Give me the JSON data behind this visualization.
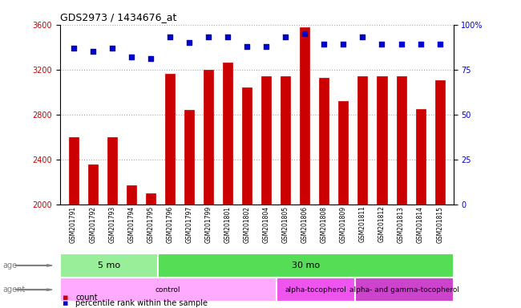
{
  "title": "GDS2973 / 1434676_at",
  "samples": [
    "GSM201791",
    "GSM201792",
    "GSM201793",
    "GSM201794",
    "GSM201795",
    "GSM201796",
    "GSM201797",
    "GSM201799",
    "GSM201801",
    "GSM201802",
    "GSM201804",
    "GSM201805",
    "GSM201806",
    "GSM201808",
    "GSM201809",
    "GSM201811",
    "GSM201812",
    "GSM201813",
    "GSM201814",
    "GSM201815"
  ],
  "counts": [
    2600,
    2360,
    2600,
    2175,
    2100,
    3160,
    2840,
    3200,
    3260,
    3040,
    3140,
    3140,
    3580,
    3130,
    2920,
    3140,
    3140,
    3140,
    2850,
    3110
  ],
  "percentile_ranks": [
    87,
    85,
    87,
    82,
    81,
    93,
    90,
    93,
    93,
    88,
    88,
    93,
    95,
    89,
    89,
    93,
    89,
    89,
    89,
    89
  ],
  "bar_color": "#cc0000",
  "dot_color": "#0000cc",
  "ylim_left": [
    2000,
    3600
  ],
  "ylim_right": [
    0,
    100
  ],
  "yticks_left": [
    2000,
    2400,
    2800,
    3200,
    3600
  ],
  "yticks_right": [
    0,
    25,
    50,
    75,
    100
  ],
  "grid_color": "#aaaaaa",
  "age_groups": [
    {
      "label": "5 mo",
      "start": 0,
      "end": 5,
      "color": "#99ee99"
    },
    {
      "label": "30 mo",
      "start": 5,
      "end": 20,
      "color": "#55dd55"
    }
  ],
  "agent_groups": [
    {
      "label": "control",
      "start": 0,
      "end": 11,
      "color": "#ffaaff"
    },
    {
      "label": "alpha-tocopherol",
      "start": 11,
      "end": 15,
      "color": "#ee55ee"
    },
    {
      "label": "alpha- and gamma-tocopherol",
      "start": 15,
      "end": 20,
      "color": "#cc44cc"
    }
  ],
  "bg_color": "#ffffff",
  "spine_color": "#000000",
  "tick_label_color_left": "#cc0000",
  "tick_label_color_right": "#0000cc",
  "title_color": "#000000",
  "legend_items": [
    {
      "label": "count",
      "color": "#cc0000"
    },
    {
      "label": "percentile rank within the sample",
      "color": "#0000cc"
    }
  ]
}
